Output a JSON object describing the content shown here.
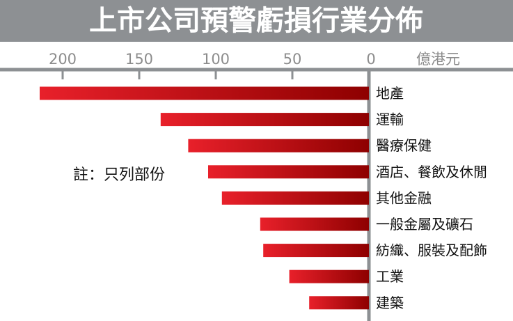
{
  "chart_data": {
    "type": "bar",
    "orientation": "horizontal",
    "direction": "right-to-left",
    "title": "上市公司預警虧損行業分佈",
    "unit": "億港元",
    "note": "註：只列部份",
    "xlim": [
      0,
      200
    ],
    "xticks": [
      200,
      150,
      100,
      50,
      0
    ],
    "categories": [
      "地產",
      "運輸",
      "醫療保健",
      "酒店、餐飲及休閒",
      "其他金融",
      "一般金屬及礦石",
      "紡織、服裝及配飾",
      "工業",
      "建築"
    ],
    "values": [
      215,
      136,
      118,
      105,
      96,
      71,
      69,
      52,
      39
    ],
    "colors": {
      "title_bar": "#8d9093",
      "bar_light": "#e8202a",
      "bar_dark": "#8e0000",
      "axis": "#8d9093"
    }
  }
}
